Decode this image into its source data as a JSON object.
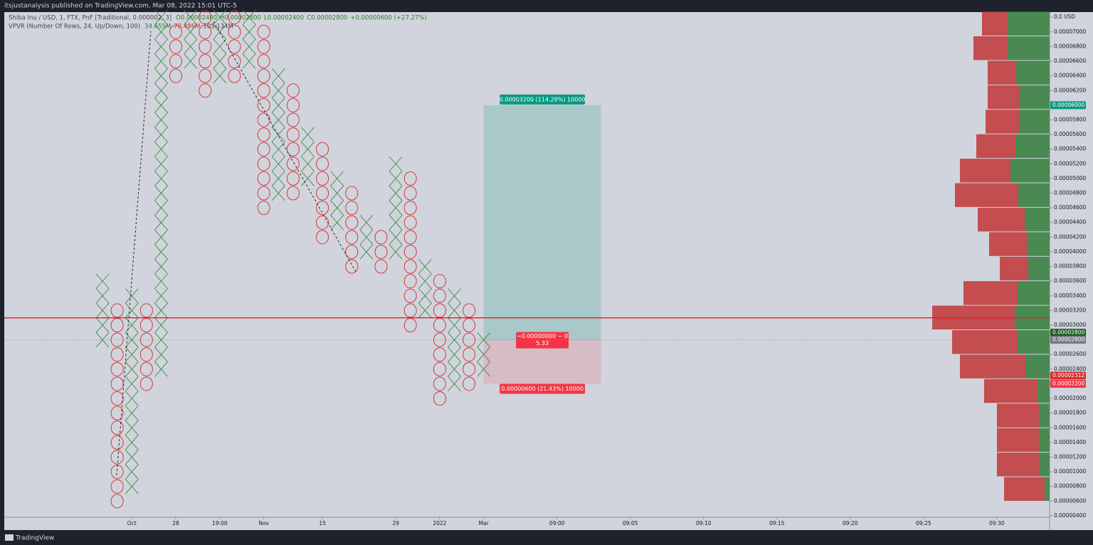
{
  "header": {
    "text": "itsjustanalysis published on TradingView.com, Mar 08, 2022 15:01 UTC-5"
  },
  "footer": {
    "brand": "TradingView"
  },
  "chart_data": {
    "type": "pnf",
    "symbol": "Shiba Inu / USD, 1, FTX, PnF [Traditional, 0.000002, 3]",
    "ohlc_labels": [
      "O0.00002400",
      "H0.00002800",
      "L0.00002400",
      "C0.00002800",
      "+0.00000600 (+27.27%)"
    ],
    "indicator": "VPVR (Number Of Rows, 24, Up/Down, 100)",
    "indicator_values": [
      "34.655M",
      "70.486M",
      "105.134M"
    ],
    "currency": "USD",
    "box_size": 2e-06,
    "x_color": "#3f8a46",
    "o_color": "#d23a3a",
    "columns": [
      {
        "kind": "X",
        "low": 2.8e-05,
        "high": 3.6e-05
      },
      {
        "kind": "O",
        "low": 6e-06,
        "high": 3.2e-05
      },
      {
        "kind": "X",
        "low": 8e-06,
        "high": 3.4e-05
      },
      {
        "kind": "O",
        "low": 2.2e-05,
        "high": 3.2e-05
      },
      {
        "kind": "X",
        "low": 2.4e-05,
        "high": 7.2e-05
      },
      {
        "kind": "O",
        "low": 6.4e-05,
        "high": 7e-05
      },
      {
        "kind": "X",
        "low": 6.6e-05,
        "high": 7.2e-05
      },
      {
        "kind": "O",
        "low": 6.2e-05,
        "high": 7.2e-05
      },
      {
        "kind": "X",
        "low": 6.4e-05,
        "high": 7.2e-05
      },
      {
        "kind": "O",
        "low": 6.4e-05,
        "high": 7.2e-05
      },
      {
        "kind": "X",
        "low": 6.6e-05,
        "high": 7.2e-05
      },
      {
        "kind": "O",
        "low": 4.6e-05,
        "high": 7e-05
      },
      {
        "kind": "X",
        "low": 4.8e-05,
        "high": 6.4e-05
      },
      {
        "kind": "O",
        "low": 4.8e-05,
        "high": 6.2e-05
      },
      {
        "kind": "X",
        "low": 5e-05,
        "high": 5.6e-05
      },
      {
        "kind": "O",
        "low": 4.2e-05,
        "high": 5.4e-05
      },
      {
        "kind": "X",
        "low": 4.4e-05,
        "high": 5e-05
      },
      {
        "kind": "O",
        "low": 3.8e-05,
        "high": 4.8e-05
      },
      {
        "kind": "X",
        "low": 4e-05,
        "high": 4.4e-05
      },
      {
        "kind": "O",
        "low": 3.8e-05,
        "high": 4.2e-05
      },
      {
        "kind": "X",
        "low": 4e-05,
        "high": 5.2e-05
      },
      {
        "kind": "O",
        "low": 3e-05,
        "high": 5e-05
      },
      {
        "kind": "X",
        "low": 3.2e-05,
        "high": 3.8e-05
      },
      {
        "kind": "O",
        "low": 2e-05,
        "high": 3.6e-05
      },
      {
        "kind": "X",
        "low": 2.2e-05,
        "high": 3.4e-05
      },
      {
        "kind": "O",
        "low": 2.2e-05,
        "high": 3.2e-05
      },
      {
        "kind": "X",
        "low": 2.4e-05,
        "high": 2.8e-05
      }
    ],
    "xlim": [
      -6.7,
      64.6
    ],
    "xticks": [
      {
        "value": 2,
        "label": "Oct"
      },
      {
        "value": 5,
        "label": "28"
      },
      {
        "value": 8,
        "label": "19:00"
      },
      {
        "value": 11,
        "label": "Nov"
      },
      {
        "value": 15,
        "label": "15"
      },
      {
        "value": 20,
        "label": "29"
      },
      {
        "value": 23,
        "label": "2022"
      },
      {
        "value": 26,
        "label": "Mar"
      },
      {
        "value": 31,
        "label": "09:00"
      },
      {
        "value": 36,
        "label": "09:05"
      },
      {
        "value": 41,
        "label": "09:10"
      },
      {
        "value": 46,
        "label": "09:15"
      },
      {
        "value": 51,
        "label": "09:20"
      },
      {
        "value": 56,
        "label": "09:25"
      },
      {
        "value": 61,
        "label": "09:30"
      }
    ],
    "ylim": [
      3.8e-06,
      7.27e-05
    ],
    "yticks": [
      {
        "value": 4e-06,
        "label": "0.00000400"
      },
      {
        "value": 6e-06,
        "label": "0.00000600"
      },
      {
        "value": 8e-06,
        "label": "0.00000800"
      },
      {
        "value": 1e-05,
        "label": "0.00001000"
      },
      {
        "value": 1.2e-05,
        "label": "0.00001200"
      },
      {
        "value": 1.4e-05,
        "label": "0.00001400"
      },
      {
        "value": 1.6e-05,
        "label": "0.00001600"
      },
      {
        "value": 1.8e-05,
        "label": "0.00001800"
      },
      {
        "value": 2e-05,
        "label": "0.00002000"
      },
      {
        "value": 2.2e-05,
        "label": "0.00002200"
      },
      {
        "value": 2.4e-05,
        "label": "0.00002400"
      },
      {
        "value": 2.6e-05,
        "label": "0.00002600"
      },
      {
        "value": 2.8e-05,
        "label": "0.00002800"
      },
      {
        "value": 3e-05,
        "label": "0.00003000"
      },
      {
        "value": 3.2e-05,
        "label": "0.00003200"
      },
      {
        "value": 3.4e-05,
        "label": "0.00003400"
      },
      {
        "value": 3.6e-05,
        "label": "0.00003600"
      },
      {
        "value": 3.8e-05,
        "label": "0.00003800"
      },
      {
        "value": 4e-05,
        "label": "0.00004000"
      },
      {
        "value": 4.2e-05,
        "label": "0.00004200"
      },
      {
        "value": 4.4e-05,
        "label": "0.00004400"
      },
      {
        "value": 4.6e-05,
        "label": "0.00004600"
      },
      {
        "value": 4.8e-05,
        "label": "0.00004800"
      },
      {
        "value": 5e-05,
        "label": "0.00005000"
      },
      {
        "value": 5.2e-05,
        "label": "0.00005200"
      },
      {
        "value": 5.4e-05,
        "label": "0.00005400"
      },
      {
        "value": 5.6e-05,
        "label": "0.00005600"
      },
      {
        "value": 5.8e-05,
        "label": "0.00005800"
      },
      {
        "value": 6e-05,
        "label": "0.00006000"
      },
      {
        "value": 6.2e-05,
        "label": "0.00006200"
      },
      {
        "value": 6.4e-05,
        "label": "0.00006400"
      },
      {
        "value": 6.6e-05,
        "label": "0.00006600"
      },
      {
        "value": 6.8e-05,
        "label": "0.00006800"
      },
      {
        "value": 7e-05,
        "label": "0.00007000"
      },
      {
        "value": 7.2e-05,
        "label": "0.00007200"
      }
    ],
    "horizontal_lines": [
      {
        "value": 3.1e-05,
        "color": "#e0202a",
        "style": "solid"
      },
      {
        "value": 2.8e-05,
        "color": "#43a047",
        "style": "dotted"
      }
    ],
    "position": {
      "x_start": 26,
      "x_end": 34,
      "entry": 2.8e-05,
      "target": 6e-05,
      "stop": 2.2e-05,
      "target_label": "0.00003200 (114.29%) 10000",
      "stop_label": "0.00000600 (21.43%) 10000",
      "pnl_label": "−0.00000000 − 0",
      "ratio": 5.33,
      "target_color": "#089981",
      "stop_color": "#f23645"
    },
    "price_labels": [
      {
        "value": 6e-05,
        "label": "0.00006000",
        "color": "#089981"
      },
      {
        "value": 2.8e-05,
        "label": "0.00002800",
        "color": "#1b5e20"
      },
      {
        "value": 2.8e-05,
        "label": "0.00002800",
        "color": "#787b86"
      },
      {
        "value": 2.312e-05,
        "label": "0.00002312",
        "color": "#d32f2f"
      },
      {
        "value": 2.2e-05,
        "label": "0.00002200",
        "color": "#f23645"
      }
    ],
    "profile": {
      "bins": [
        5.94e-06,
        9.28e-06,
        1.262e-05,
        1.596e-05,
        1.93e-05,
        2.264e-05,
        2.598e-05,
        2.932e-05,
        3.266e-05,
        3.6e-05,
        3.934e-05,
        4.268e-05,
        4.602e-05,
        4.936e-05,
        5.27e-05,
        5.604e-05,
        5.938e-05,
        6.272e-05,
        6.606e-05,
        6.94e-05,
        7.274e-05
      ],
      "up": [
        7,
        15,
        15,
        15,
        17,
        34,
        45,
        49,
        45,
        30,
        32,
        35,
        44,
        55,
        48,
        43,
        43,
        47,
        59,
        59
      ],
      "down": [
        57,
        59,
        59,
        59,
        75,
        92,
        92,
        116,
        76,
        40,
        53,
        66,
        89,
        71,
        55,
        47,
        44,
        40,
        48,
        36
      ],
      "up_color": "#4a8a52",
      "down_color": "#c44d4f"
    }
  }
}
